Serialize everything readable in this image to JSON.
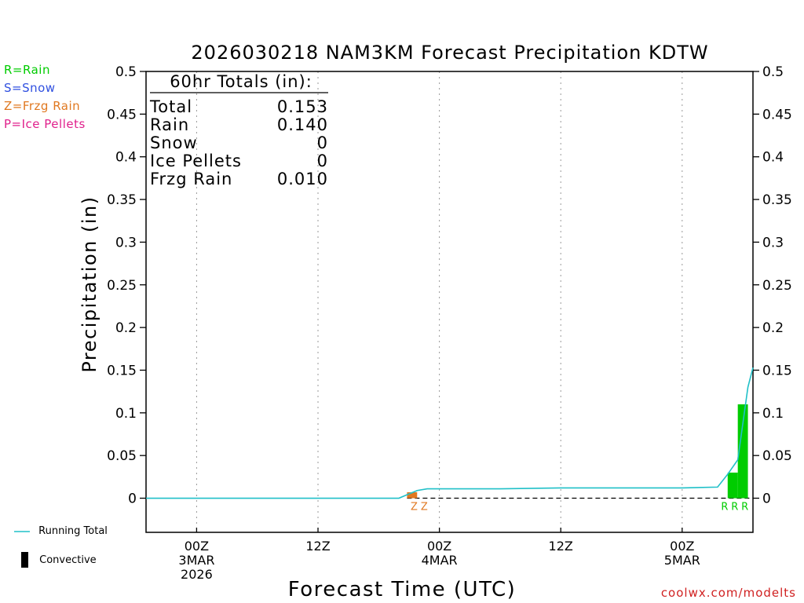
{
  "colors": {
    "rain": "#00cc00",
    "snow": "#3050e0",
    "frzg_rain": "#e07820",
    "ice_pellets": "#e0208c",
    "running_total": "#20c0c8",
    "convective": "#000000",
    "credit": "#d02020"
  },
  "type_legend": [
    {
      "label": "R=Rain",
      "color": "#00cc00"
    },
    {
      "label": "S=Snow",
      "color": "#3050e0"
    },
    {
      "label": "Z=Frzg Rain",
      "color": "#e07820"
    },
    {
      "label": "P=Ice Pellets",
      "color": "#e0208c"
    }
  ],
  "totals": {
    "header": "60hr Totals (in):",
    "rows": [
      {
        "label": "Total",
        "value": "0.153"
      },
      {
        "label": "Rain",
        "value": "0.140"
      },
      {
        "label": "Snow",
        "value": "0"
      },
      {
        "label": "Ice Pellets",
        "value": "0"
      },
      {
        "label": "Frzg Rain",
        "value": "0.010"
      }
    ]
  },
  "series_legend": {
    "running_total": "Running Total",
    "convective": "Convective"
  },
  "credit": "coolwx.com/modelts",
  "chart_data": {
    "type": "bar",
    "title": "2026030218 NAM3KM Forecast Precipitation KDTW",
    "xlabel": "Forecast Time (UTC)",
    "ylabel": "Precipitation (in)",
    "ylim": [
      -0.04,
      0.5
    ],
    "xlim_hours": [
      -5,
      55
    ],
    "yticks": [
      {
        "value": 0.5,
        "label": "0.5"
      },
      {
        "value": 0.45,
        "label": "0.45"
      },
      {
        "value": 0.4,
        "label": "0.4"
      },
      {
        "value": 0.35,
        "label": "0.35"
      },
      {
        "value": 0.3,
        "label": "0.3"
      },
      {
        "value": 0.25,
        "label": "0.25"
      },
      {
        "value": 0.2,
        "label": "0.2"
      },
      {
        "value": 0.15,
        "label": "0.15"
      },
      {
        "value": 0.1,
        "label": "0.1"
      },
      {
        "value": 0.05,
        "label": "0.05"
      },
      {
        "value": 0,
        "label": "0"
      }
    ],
    "xticks": [
      {
        "hour": 0,
        "lines": [
          "00Z",
          "3MAR",
          "2026"
        ]
      },
      {
        "hour": 12,
        "lines": [
          "12Z"
        ]
      },
      {
        "hour": 24,
        "lines": [
          "00Z",
          "4MAR"
        ]
      },
      {
        "hour": 36,
        "lines": [
          "12Z"
        ]
      },
      {
        "hour": 48,
        "lines": [
          "00Z",
          "5MAR"
        ]
      }
    ],
    "bars": [
      {
        "hour_start": 20.8,
        "hour_end": 21.8,
        "value": 0.007,
        "ptype": "Z",
        "color": "#e07820"
      },
      {
        "hour_start": 52.5,
        "hour_end": 53.5,
        "value": 0.03,
        "ptype": "R",
        "color": "#00cc00"
      },
      {
        "hour_start": 53.5,
        "hour_end": 54.5,
        "value": 0.11,
        "ptype": "R",
        "color": "#00cc00"
      }
    ],
    "type_markers": [
      {
        "hour": 21.5,
        "label": "Z",
        "color": "#e07820"
      },
      {
        "hour": 22.5,
        "label": "Z",
        "color": "#e07820"
      },
      {
        "hour": 52.2,
        "label": "R",
        "color": "#00cc00"
      },
      {
        "hour": 53.2,
        "label": "R",
        "color": "#00cc00"
      },
      {
        "hour": 54.2,
        "label": "R",
        "color": "#00cc00"
      }
    ],
    "running_total": {
      "name": "Running Total",
      "x": [
        -5,
        20,
        20.8,
        21.8,
        22.8,
        30,
        36,
        42,
        48,
        51.5,
        52.5,
        53.5,
        54.5,
        55
      ],
      "y": [
        0,
        0,
        0.004,
        0.009,
        0.011,
        0.011,
        0.012,
        0.012,
        0.012,
        0.013,
        0.028,
        0.045,
        0.13,
        0.153
      ]
    }
  }
}
